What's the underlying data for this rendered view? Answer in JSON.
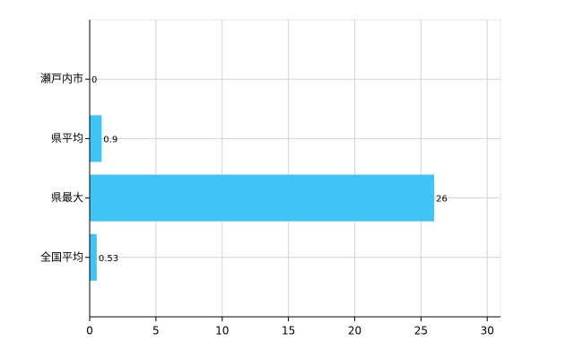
{
  "chart_data": {
    "type": "barh",
    "categories": [
      "瀬戸内市",
      "県平均",
      "県最大",
      "全国平均"
    ],
    "values": [
      0,
      0.9,
      26,
      0.53
    ],
    "color": "#3fc4f3",
    "xlim": [
      0,
      31
    ],
    "xticks": [
      0,
      5,
      10,
      15,
      20,
      25,
      30
    ],
    "grid": true
  }
}
